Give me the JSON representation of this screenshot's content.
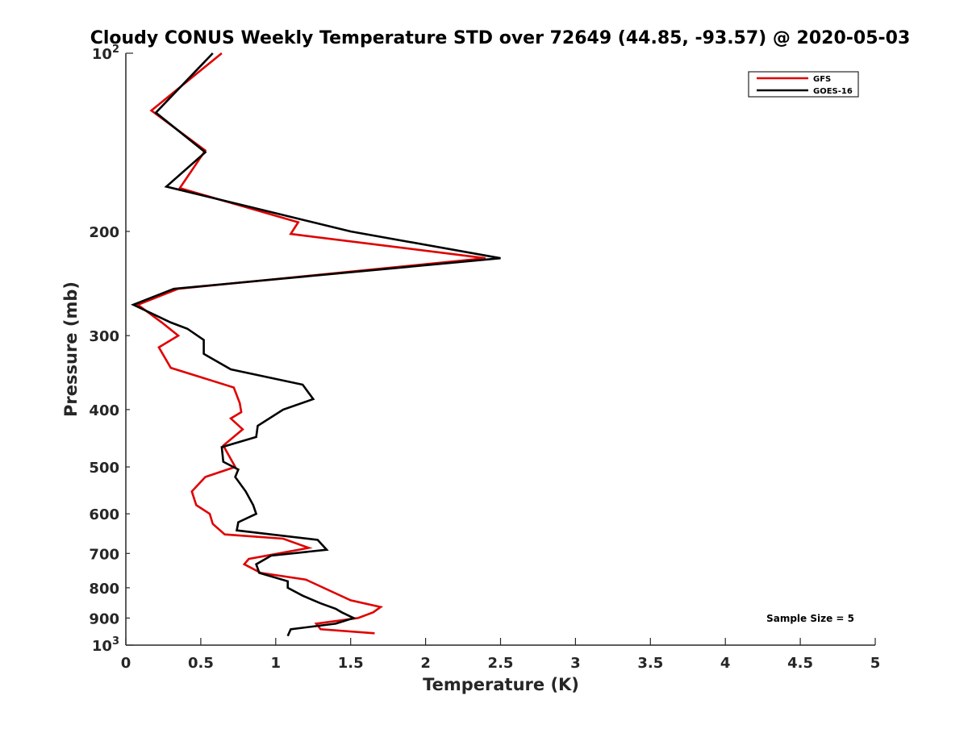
{
  "chart_data": {
    "type": "line",
    "title": "Cloudy CONUS Weekly Temperature STD over 72649 (44.85, -93.57) @ 2020-05-03",
    "xlabel": "Temperature (K)",
    "ylabel": "Pressure (mb)",
    "xlim": [
      0,
      5
    ],
    "ylim": [
      100,
      1000
    ],
    "y_scale": "log",
    "y_reversed": true,
    "x_ticks": [
      {
        "value": 0,
        "label": "0"
      },
      {
        "value": 0.5,
        "label": "0.5"
      },
      {
        "value": 1,
        "label": "1"
      },
      {
        "value": 1.5,
        "label": "1.5"
      },
      {
        "value": 2,
        "label": "2"
      },
      {
        "value": 2.5,
        "label": "2.5"
      },
      {
        "value": 3,
        "label": "3"
      },
      {
        "value": 3.5,
        "label": "3.5"
      },
      {
        "value": 4,
        "label": "4"
      },
      {
        "value": 4.5,
        "label": "4.5"
      },
      {
        "value": 5,
        "label": "5"
      }
    ],
    "y_ticks": [
      {
        "value": 100,
        "label": "10",
        "sup": "2"
      },
      {
        "value": 200,
        "label": "200",
        "sup": ""
      },
      {
        "value": 300,
        "label": "300",
        "sup": ""
      },
      {
        "value": 400,
        "label": "400",
        "sup": ""
      },
      {
        "value": 500,
        "label": "500",
        "sup": ""
      },
      {
        "value": 600,
        "label": "600",
        "sup": ""
      },
      {
        "value": 700,
        "label": "700",
        "sup": ""
      },
      {
        "value": 800,
        "label": "800",
        "sup": ""
      },
      {
        "value": 900,
        "label": "900",
        "sup": ""
      },
      {
        "value": 1000,
        "label": "10",
        "sup": "3"
      }
    ],
    "grid": false,
    "legend_position": "top-right",
    "annotation": "Sample Size = 5",
    "series": [
      {
        "name": "GFS",
        "color": "#e00000",
        "points": [
          [
            0.64,
            100
          ],
          [
            0.17,
            125
          ],
          [
            0.53,
            146
          ],
          [
            0.36,
            169
          ],
          [
            1.15,
            193
          ],
          [
            1.1,
            202
          ],
          [
            2.4,
            222
          ],
          [
            0.35,
            250
          ],
          [
            0.08,
            266
          ],
          [
            0.24,
            285
          ],
          [
            0.35,
            300
          ],
          [
            0.22,
            314
          ],
          [
            0.3,
            340
          ],
          [
            0.72,
            367
          ],
          [
            0.76,
            390
          ],
          [
            0.77,
            404
          ],
          [
            0.7,
            414
          ],
          [
            0.78,
            432
          ],
          [
            0.65,
            460
          ],
          [
            0.73,
            500
          ],
          [
            0.53,
            520
          ],
          [
            0.44,
            550
          ],
          [
            0.47,
            580
          ],
          [
            0.56,
            600
          ],
          [
            0.58,
            624
          ],
          [
            0.66,
            650
          ],
          [
            1.05,
            661
          ],
          [
            1.22,
            685
          ],
          [
            0.82,
            715
          ],
          [
            0.79,
            730
          ],
          [
            0.9,
            755
          ],
          [
            1.2,
            775
          ],
          [
            1.5,
            840
          ],
          [
            1.7,
            862
          ],
          [
            1.65,
            880
          ],
          [
            1.55,
            900
          ],
          [
            1.27,
            920
          ],
          [
            1.3,
            940
          ],
          [
            1.66,
            955
          ]
        ]
      },
      {
        "name": "GOES-16",
        "color": "#000000",
        "points": [
          [
            0.58,
            100
          ],
          [
            0.2,
            126
          ],
          [
            0.53,
            147
          ],
          [
            0.27,
            168
          ],
          [
            1.5,
            200
          ],
          [
            2.5,
            222
          ],
          [
            0.32,
            250
          ],
          [
            0.05,
            266
          ],
          [
            0.3,
            285
          ],
          [
            0.41,
            292
          ],
          [
            0.52,
            305
          ],
          [
            0.52,
            322
          ],
          [
            0.7,
            342
          ],
          [
            1.18,
            363
          ],
          [
            1.25,
            384
          ],
          [
            1.05,
            400
          ],
          [
            0.88,
            426
          ],
          [
            0.87,
            445
          ],
          [
            0.64,
            463
          ],
          [
            0.65,
            490
          ],
          [
            0.75,
            505
          ],
          [
            0.73,
            520
          ],
          [
            0.8,
            550
          ],
          [
            0.85,
            580
          ],
          [
            0.87,
            600
          ],
          [
            0.75,
            620
          ],
          [
            0.74,
            640
          ],
          [
            1.28,
            664
          ],
          [
            1.34,
            690
          ],
          [
            0.97,
            706
          ],
          [
            0.87,
            730
          ],
          [
            0.89,
            755
          ],
          [
            1.08,
            780
          ],
          [
            1.08,
            800
          ],
          [
            1.18,
            825
          ],
          [
            1.3,
            850
          ],
          [
            1.4,
            868
          ],
          [
            1.44,
            880
          ],
          [
            1.52,
            900
          ],
          [
            1.4,
            920
          ],
          [
            1.1,
            940
          ],
          [
            1.08,
            965
          ]
        ]
      }
    ]
  }
}
